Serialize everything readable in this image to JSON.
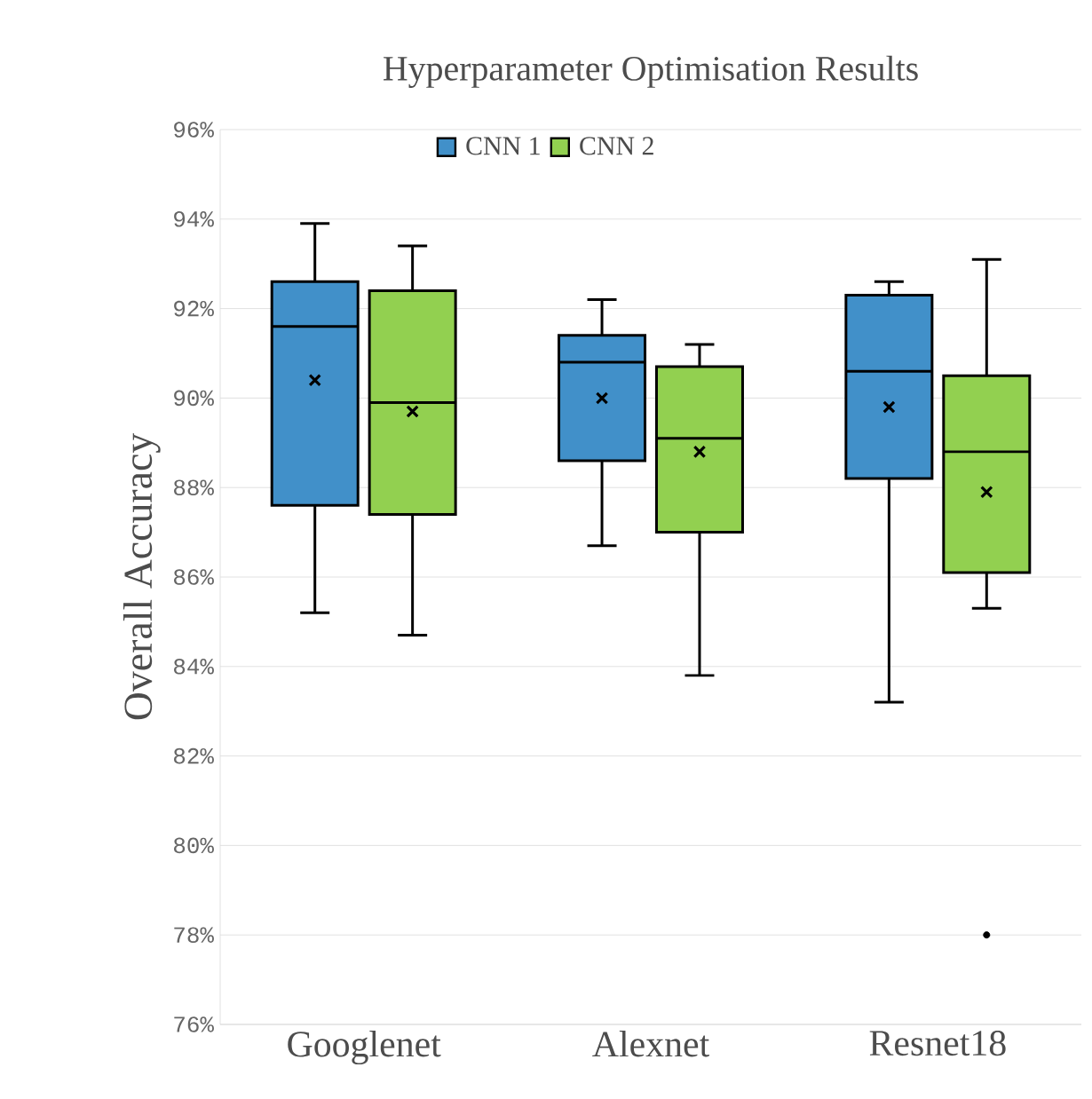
{
  "chart_data": {
    "type": "box",
    "title": "Hyperparameter Optimisation Results",
    "ylabel": "Overall Accuracy",
    "categories": [
      "Googlenet",
      "Alexnet",
      "Resnet18"
    ],
    "series": [
      {
        "name": "CNN 1",
        "color": "#4190c9",
        "boxes": [
          {
            "low": 85.2,
            "q1": 87.6,
            "median": 91.6,
            "q3": 92.6,
            "high": 93.9,
            "mean": 90.4
          },
          {
            "low": 86.7,
            "q1": 88.6,
            "median": 90.8,
            "q3": 91.4,
            "high": 92.2,
            "mean": 90.0
          },
          {
            "low": 83.2,
            "q1": 88.2,
            "median": 90.6,
            "q3": 92.3,
            "high": 92.6,
            "mean": 89.8
          }
        ]
      },
      {
        "name": "CNN 2",
        "color": "#92d050",
        "boxes": [
          {
            "low": 84.7,
            "q1": 87.4,
            "median": 89.9,
            "q3": 92.4,
            "high": 93.4,
            "mean": 89.7
          },
          {
            "low": 83.8,
            "q1": 87.0,
            "median": 89.1,
            "q3": 90.7,
            "high": 91.2,
            "mean": 88.8
          },
          {
            "low": 85.3,
            "q1": 86.1,
            "median": 88.8,
            "q3": 90.5,
            "high": 93.1,
            "mean": 87.9,
            "outliers": [
              78
            ]
          }
        ]
      }
    ],
    "ylim": [
      76,
      96
    ],
    "yticks": [
      {
        "value": 76,
        "label": "76%"
      },
      {
        "value": 78,
        "label": "78%"
      },
      {
        "value": 80,
        "label": "80%"
      },
      {
        "value": 82,
        "label": "82%"
      },
      {
        "value": 84,
        "label": "84%"
      },
      {
        "value": 86,
        "label": "86%"
      },
      {
        "value": 88,
        "label": "88%"
      },
      {
        "value": 90,
        "label": "90%"
      },
      {
        "value": 92,
        "label": "92%"
      },
      {
        "value": 94,
        "label": "94%"
      },
      {
        "value": 96,
        "label": "96%"
      }
    ],
    "grid": "y",
    "legend": "top"
  }
}
